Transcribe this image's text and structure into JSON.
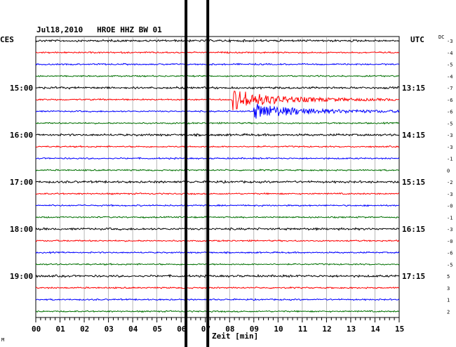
{
  "header": {
    "station": "Jul18,2010   HROE HHZ BW 01",
    "left_zone": "CES",
    "right_zone": "UTC",
    "dc_title": "DC"
  },
  "chart_data": {
    "type": "line",
    "title": "Jul18,2010   HROE HHZ BW 01",
    "xlabel": "Zeit [min]",
    "xlim": [
      0,
      15
    ],
    "x_ticks": [
      "00",
      "01",
      "02",
      "03",
      "04",
      "05",
      "06",
      "07",
      "08",
      "09",
      "10",
      "11",
      "12",
      "13",
      "14",
      "15"
    ],
    "trace_colors": [
      "#000000",
      "#ff0000",
      "#0000ff",
      "#007000"
    ],
    "left_time_labels": [
      {
        "row": 4,
        "label": "15:00"
      },
      {
        "row": 8,
        "label": "16:00"
      },
      {
        "row": 12,
        "label": "17:00"
      },
      {
        "row": 16,
        "label": "18:00"
      },
      {
        "row": 20,
        "label": "19:00"
      }
    ],
    "right_time_labels": [
      {
        "row": 4,
        "label": "13:15"
      },
      {
        "row": 8,
        "label": "14:15"
      },
      {
        "row": 12,
        "label": "15:15"
      },
      {
        "row": 16,
        "label": "16:15"
      },
      {
        "row": 20,
        "label": "17:15"
      }
    ],
    "dc_offsets": [
      "-3",
      "-4",
      "-5",
      "-4",
      "-7",
      "-6",
      "-6",
      "-5",
      "-3",
      "-3",
      "-1",
      "0",
      "-2",
      "-3",
      "-0",
      "-1",
      "-3",
      "-0",
      "-6",
      "-5",
      "5",
      "3",
      "1",
      "2"
    ],
    "event": {
      "start_row": 5,
      "start_min": 8.1,
      "peak_relative_amplitude": 12,
      "duration_min": 6.9,
      "continues_row": 6,
      "continues_start_min": 9.0
    },
    "gap_markers_min": [
      6.2,
      7.1
    ],
    "rows": 24
  },
  "footer": {
    "corner_mark": "M"
  }
}
